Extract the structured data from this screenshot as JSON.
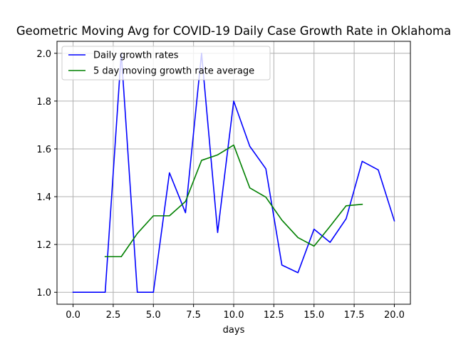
{
  "chart_data": {
    "type": "line",
    "title": "Geometric Moving Avg for COVID-19 Daily Case Growth Rate in Oklahoma",
    "xlabel": "days",
    "ylabel": "",
    "xlim": [
      -1,
      21
    ],
    "ylim": [
      0.95,
      2.05
    ],
    "xticks": [
      0.0,
      2.5,
      5.0,
      7.5,
      10.0,
      12.5,
      15.0,
      17.5,
      20.0
    ],
    "xtick_labels": [
      "0.0",
      "2.5",
      "5.0",
      "7.5",
      "10.0",
      "12.5",
      "15.0",
      "17.5",
      "20.0"
    ],
    "yticks": [
      1.0,
      1.2,
      1.4,
      1.6,
      1.8,
      2.0
    ],
    "ytick_labels": [
      "1.0",
      "1.2",
      "1.4",
      "1.6",
      "1.8",
      "2.0"
    ],
    "grid": true,
    "legend_position": "top-left",
    "series": [
      {
        "name": "Daily growth rates",
        "color": "#0000ff",
        "x": [
          0,
          1,
          2,
          3,
          4,
          5,
          6,
          7,
          8,
          9,
          10,
          11,
          12,
          13,
          14,
          15,
          16,
          17,
          18,
          19,
          20
        ],
        "values": [
          1.0,
          1.0,
          1.0,
          2.0,
          1.0,
          1.0,
          1.5,
          1.333,
          2.0,
          1.25,
          1.8,
          1.611,
          1.517,
          1.114,
          1.082,
          1.264,
          1.209,
          1.308,
          1.548,
          1.512,
          1.299
        ]
      },
      {
        "name": "5 day moving growth rate average",
        "color": "#008000",
        "x": [
          2,
          3,
          4,
          5,
          6,
          7,
          8,
          9,
          10,
          11,
          12,
          13,
          14,
          15,
          16,
          17,
          18
        ],
        "values": [
          1.149,
          1.149,
          1.246,
          1.32,
          1.32,
          1.38,
          1.552,
          1.575,
          1.616,
          1.437,
          1.398,
          1.302,
          1.229,
          1.193,
          1.276,
          1.362,
          1.368
        ]
      }
    ]
  }
}
